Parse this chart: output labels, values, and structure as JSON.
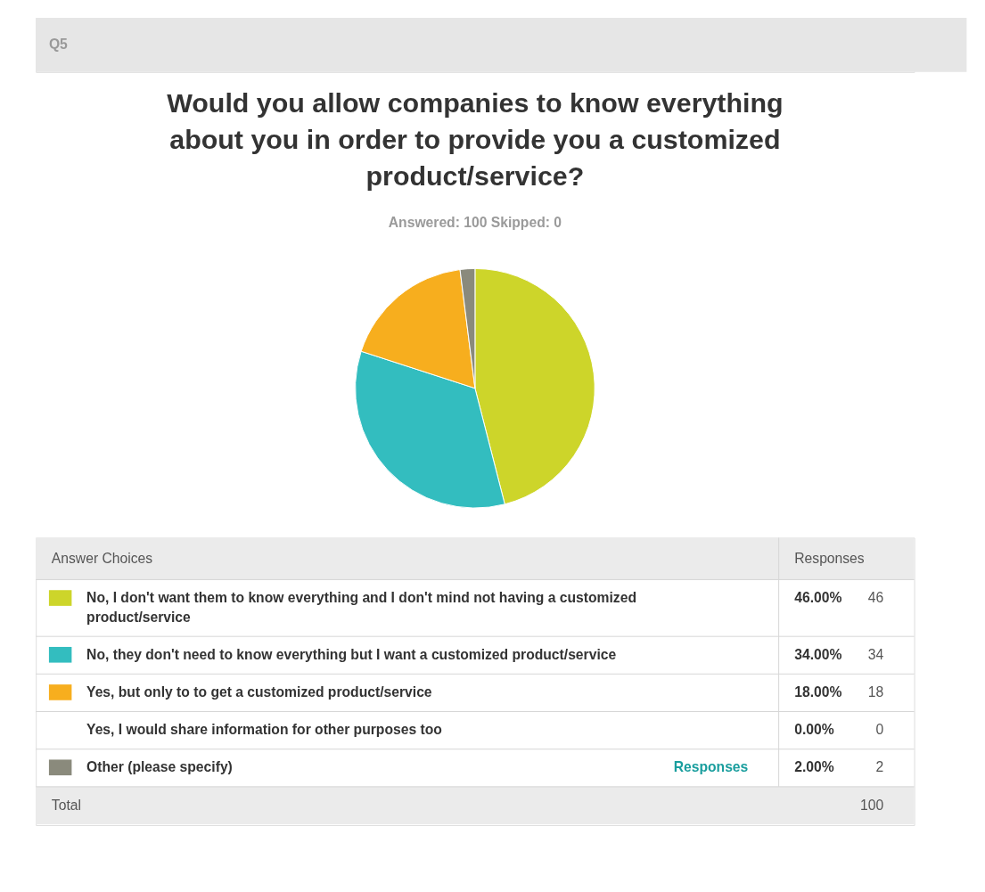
{
  "chart_data": {
    "type": "pie",
    "title": "Would you allow companies to know everything about you in order to provide you a customized product/service?",
    "subtitle": "Answered: 100    Skipped: 0",
    "categories": [
      "No, I don't want them to know everything and I don't mind not having a customized product/service",
      "No, they don't need to know everything but I want a customized product/service",
      "Yes, but only to to get a customized product/service",
      "Yes, I would share information for other purposes too",
      "Other (please specify)"
    ],
    "values": [
      46,
      34,
      18,
      0,
      2
    ],
    "colors": [
      "#cdd52a",
      "#33bdbf",
      "#f7ae1e",
      "#cccccc",
      "#8a8a7c"
    ],
    "value_labels": [
      "46.00%",
      "34.00%",
      "18.00%",
      "0.00%",
      "2.00%"
    ],
    "totals": [
      "100"
    ],
    "legend": "bottom",
    "annotations": [
      "Q5",
      "Answer Choices",
      "Responses",
      "Responses",
      "Total",
      "46",
      "34",
      "18",
      "0",
      "2"
    ]
  }
}
